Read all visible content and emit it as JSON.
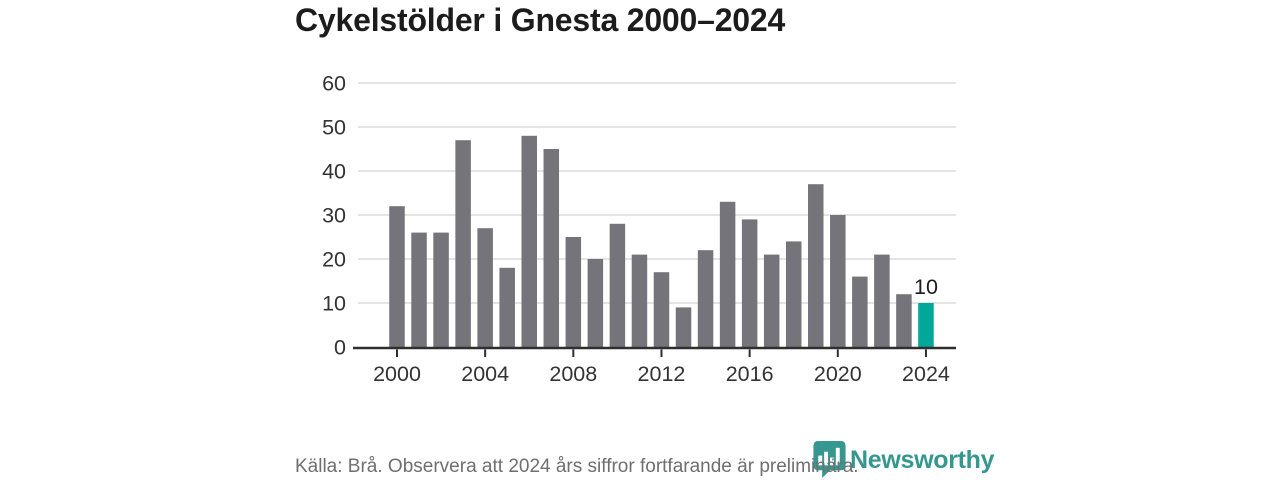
{
  "title": "Cykelstölder i Gnesta 2000–2024",
  "footer": {
    "source_note": "Källa: Brå. Observera att 2024 års siffror fortfarande är preliminära.",
    "brand": "Newsworthy"
  },
  "icons": {
    "brand_badge": "bar-chart-speech-bubble-icon"
  },
  "colors": {
    "bar": "#74747a",
    "highlight": "#00a79b",
    "brand": "#35978f",
    "grid": "#dcdcdc",
    "axis": "#2f2f2f",
    "tick_text": "#333333",
    "title_text": "#1c1c1c",
    "footer_text": "#6f6f6f",
    "value_label_text": "#1c1c1c",
    "background": "#ffffff"
  },
  "chart_data": {
    "type": "bar",
    "title": "Cykelstölder i Gnesta 2000–2024",
    "x": [
      2000,
      2001,
      2002,
      2003,
      2004,
      2005,
      2006,
      2007,
      2008,
      2009,
      2010,
      2011,
      2012,
      2013,
      2014,
      2015,
      2016,
      2017,
      2018,
      2019,
      2020,
      2021,
      2022,
      2023,
      2024
    ],
    "values": [
      32,
      26,
      26,
      47,
      27,
      18,
      48,
      45,
      25,
      20,
      28,
      21,
      17,
      9,
      22,
      33,
      29,
      21,
      24,
      37,
      30,
      16,
      21,
      12,
      10
    ],
    "highlight_index": 24,
    "highlight_label": "10",
    "xticks": [
      2000,
      2004,
      2008,
      2012,
      2016,
      2020,
      2024
    ],
    "yticks": [
      0,
      10,
      20,
      30,
      40,
      50,
      60
    ],
    "ylim": [
      0,
      60
    ],
    "xlabel": "",
    "ylabel": "",
    "grid": true,
    "legend": false
  }
}
